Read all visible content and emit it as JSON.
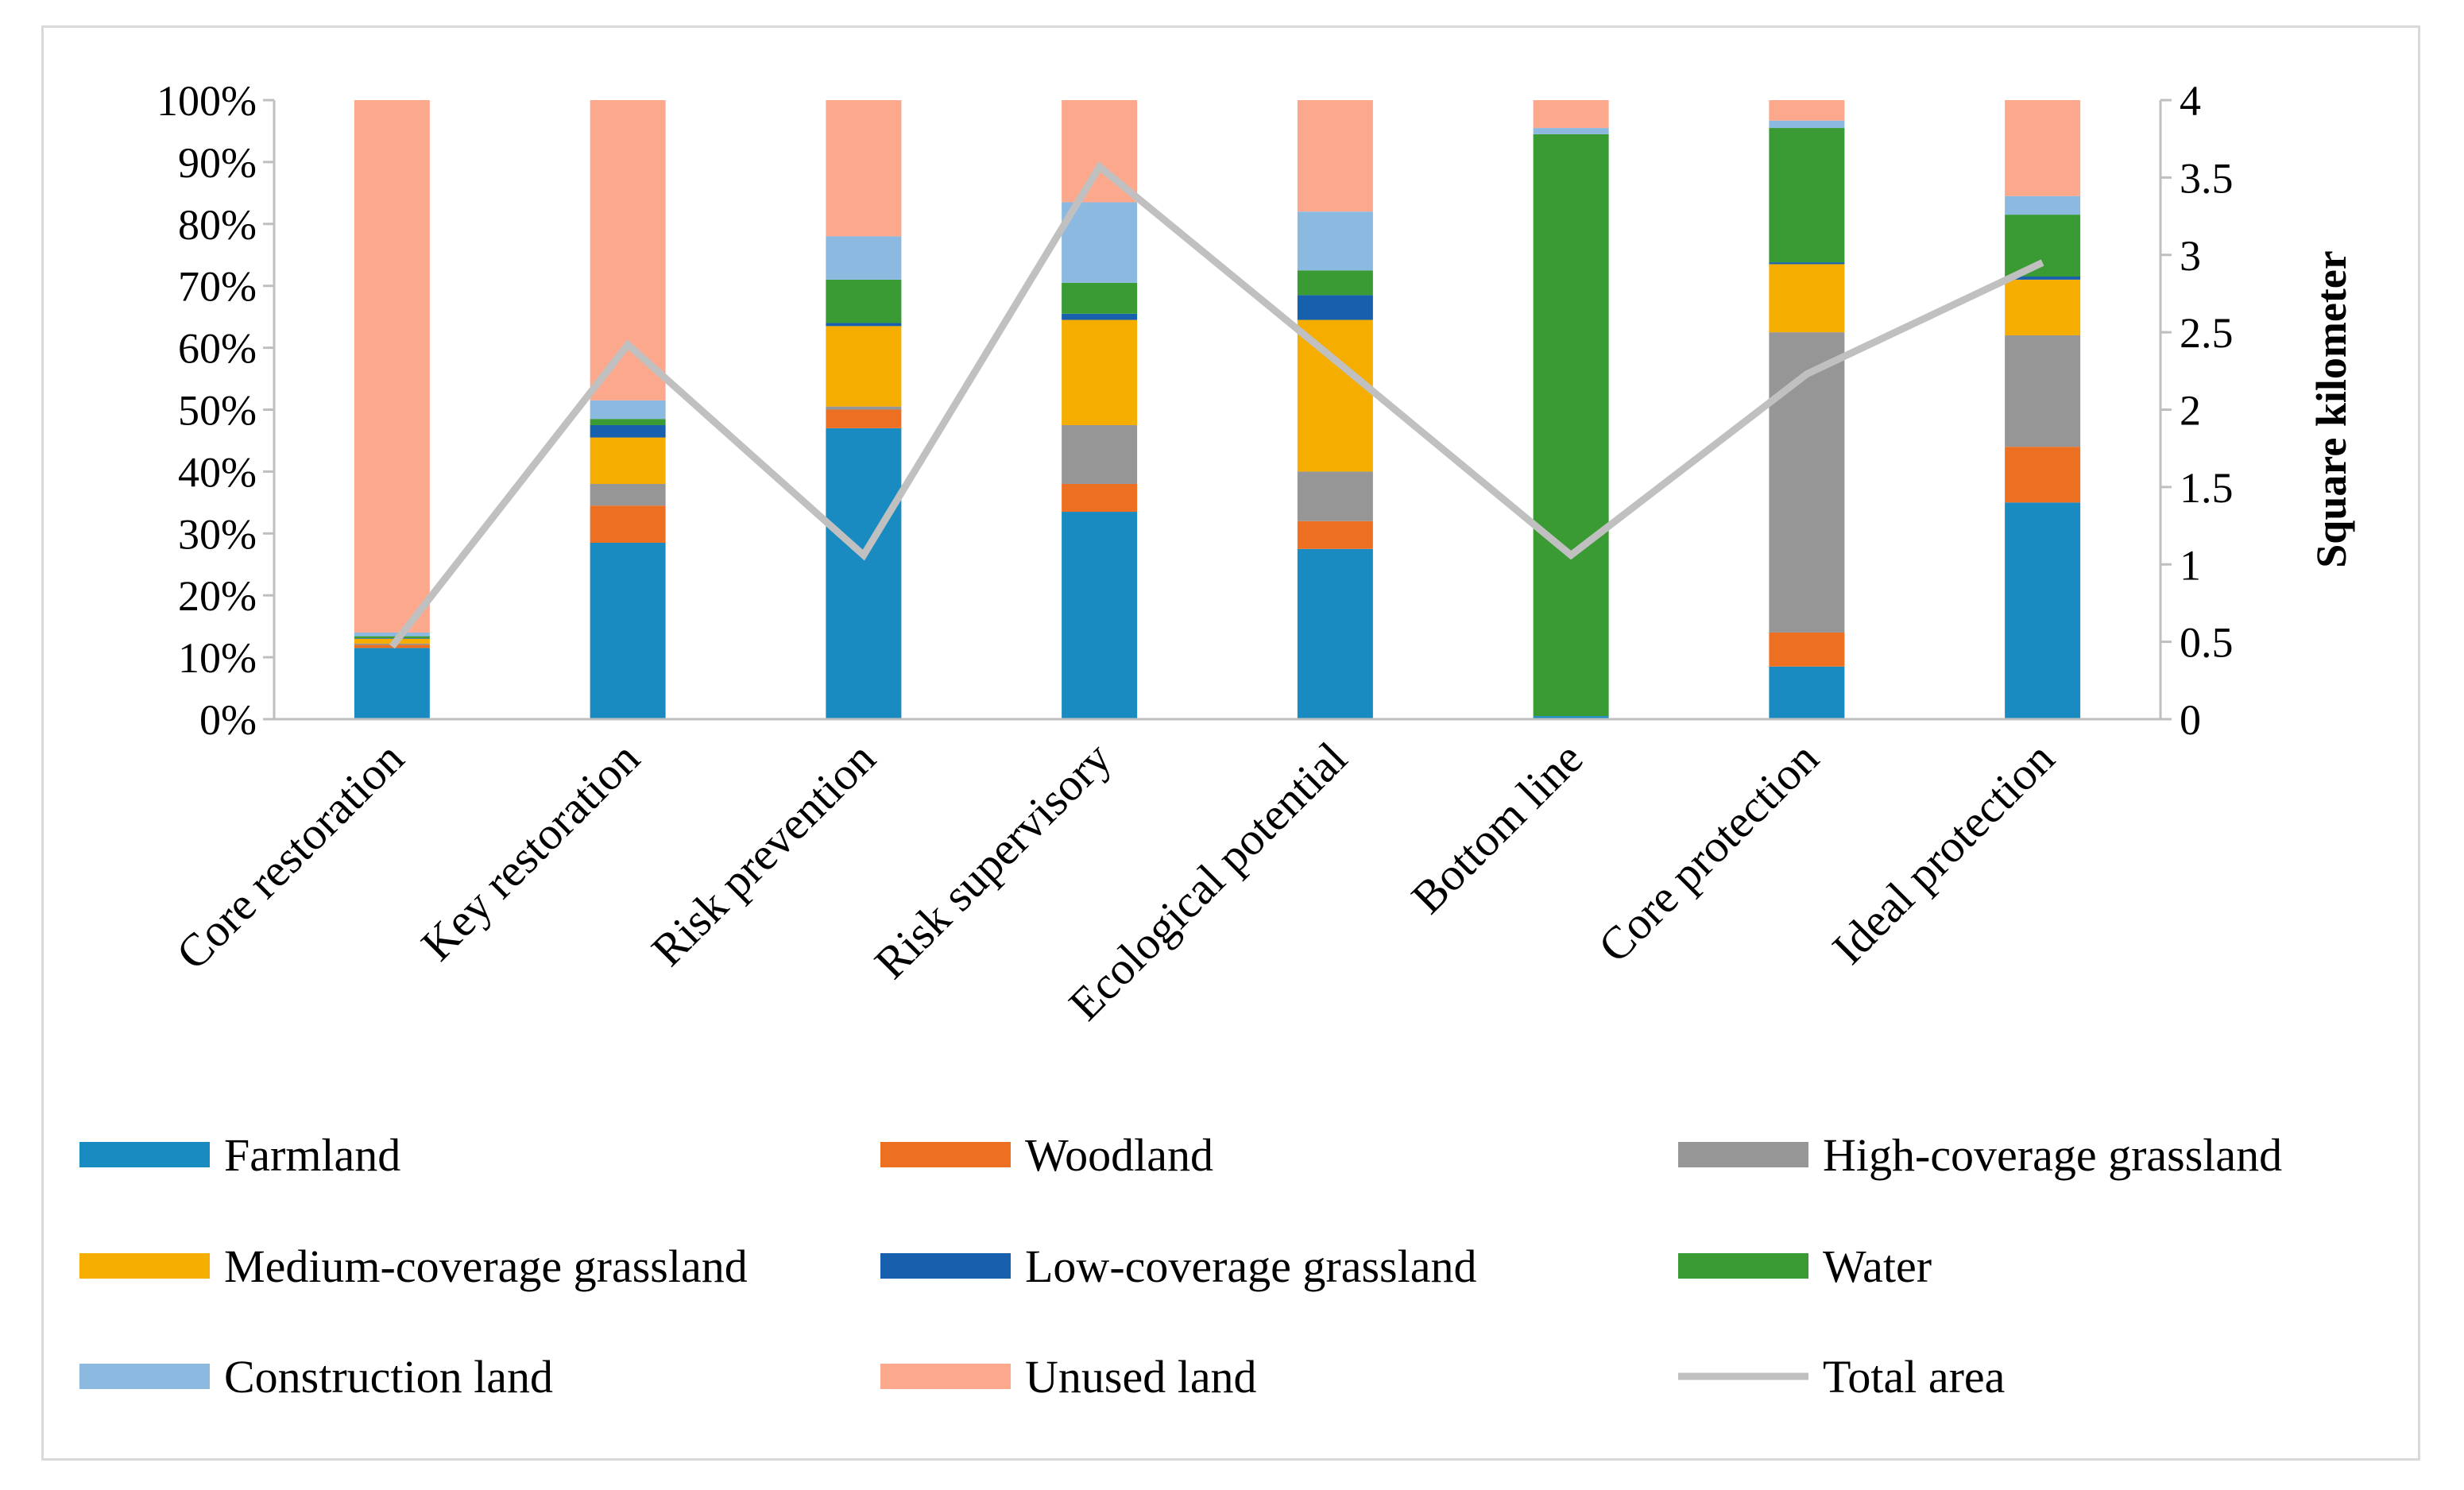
{
  "chart_data": {
    "type": "bar",
    "stacked": true,
    "percent_stacked": true,
    "title": "",
    "xlabel": "",
    "ylabel": "",
    "y2label": "Square kilometer",
    "ylim": [
      0,
      100
    ],
    "y2lim": [
      0,
      4
    ],
    "y_ticks": [
      "0%",
      "10%",
      "20%",
      "30%",
      "40%",
      "50%",
      "60%",
      "70%",
      "80%",
      "90%",
      "100%"
    ],
    "y2_ticks": [
      "0",
      "0.5",
      "1",
      "1.5",
      "2",
      "2.5",
      "3",
      "3.5",
      "4"
    ],
    "categories": [
      "Core restoration",
      "Key restoration",
      "Risk prevention",
      "Risk supervisory",
      "Ecological potential",
      "Bottom line",
      "Core protection",
      "Ideal protection"
    ],
    "series": [
      {
        "name": "Farmland",
        "color": "#1a8bc1",
        "values": [
          11.5,
          28.5,
          47,
          33.5,
          27.5,
          0.5,
          8.5,
          35
        ]
      },
      {
        "name": "Woodland",
        "color": "#ed7022",
        "values": [
          0.5,
          6,
          3,
          4.5,
          4.5,
          0,
          5.5,
          9
        ]
      },
      {
        "name": "High-coverage grassland",
        "color": "#969696",
        "values": [
          0.2,
          3.5,
          0.5,
          9.5,
          8,
          0,
          48.5,
          18
        ]
      },
      {
        "name": "Medium-coverage grassland",
        "color": "#f5ad00",
        "values": [
          0.8,
          7.5,
          13,
          17,
          24.5,
          0,
          11,
          9
        ]
      },
      {
        "name": "Low-coverage grassland",
        "color": "#1660ad",
        "values": [
          0.1,
          2,
          0.5,
          1,
          4,
          0,
          0.3,
          0.5
        ]
      },
      {
        "name": "Water",
        "color": "#3a9a33",
        "values": [
          0.3,
          1,
          7,
          5,
          4,
          94,
          21.7,
          10
        ]
      },
      {
        "name": "Construction land",
        "color": "#8cb9e0",
        "values": [
          0.6,
          3,
          7,
          13,
          9.5,
          1,
          1.2,
          3
        ]
      },
      {
        "name": "Unused land",
        "color": "#fca88d",
        "values": [
          86,
          48.5,
          22,
          16.5,
          18,
          4.5,
          3.3,
          15.5
        ]
      }
    ],
    "line_series": {
      "name": "Total area",
      "color": "#c0c0c0",
      "axis": "secondary",
      "values": [
        0.47,
        2.42,
        1.06,
        3.57,
        2.32,
        1.06,
        2.23,
        2.95
      ]
    },
    "legend_position": "bottom",
    "grid": false
  }
}
